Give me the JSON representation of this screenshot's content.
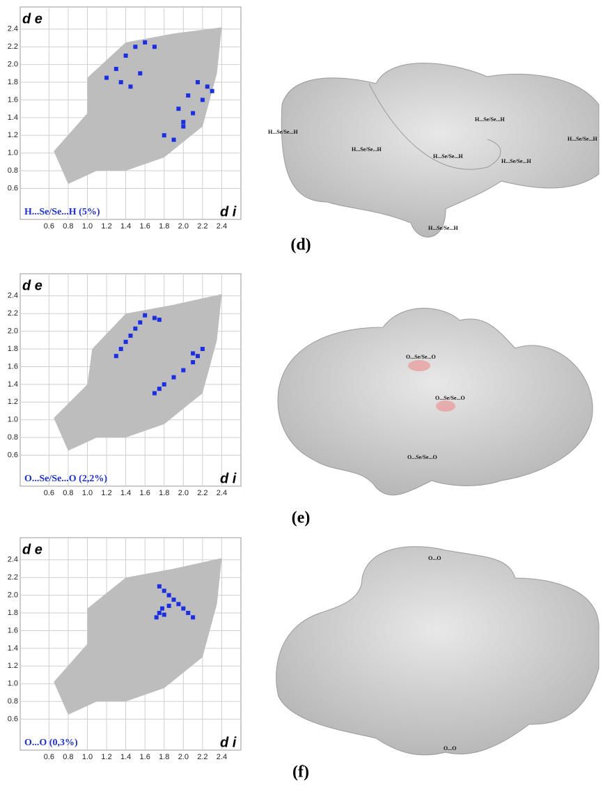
{
  "chart_data": [
    {
      "type": "scatter",
      "x_label": "d i",
      "y_label": "d e",
      "annotation": "H...Se/Se...H (5%)",
      "xlim": [
        0.3,
        2.6
      ],
      "ylim": [
        0.25,
        2.65
      ],
      "grid": true,
      "xticks": [
        0.6,
        0.8,
        {
          "value": 1,
          "label": "1.0"
        },
        1.2,
        1.4,
        1.6,
        1.8,
        {
          "value": 2,
          "label": "2.0"
        },
        2.2,
        2.4
      ],
      "yticks": [
        0.6,
        0.8,
        {
          "value": 1,
          "label": "1.0"
        },
        1.2,
        1.4,
        1.6,
        1.8,
        {
          "value": 2,
          "label": "2.0"
        },
        2.2,
        2.4
      ],
      "series": [
        {
          "style": "cloud",
          "color": "#bdbdbd",
          "x": [
            0.65,
            1.0,
            1.0,
            1.4,
            1.9,
            2.4,
            2.35,
            2.2,
            1.8,
            1.4,
            1.1,
            0.8
          ],
          "values": [
            1.02,
            1.45,
            1.85,
            2.25,
            2.35,
            2.42,
            1.9,
            1.3,
            0.95,
            0.8,
            0.8,
            0.65
          ]
        },
        {
          "style": "points",
          "color": "#1a2ee6",
          "x": [
            1.2,
            1.3,
            1.4,
            1.5,
            1.6,
            1.7,
            1.35,
            1.45,
            1.55,
            1.8,
            1.9,
            2.0,
            2.1,
            2.2,
            2.25,
            1.95,
            2.05,
            2.15,
            2.3,
            2.0
          ],
          "values": [
            1.85,
            1.95,
            2.1,
            2.2,
            2.25,
            2.2,
            1.8,
            1.75,
            1.9,
            1.2,
            1.15,
            1.3,
            1.45,
            1.6,
            1.75,
            1.5,
            1.65,
            1.8,
            1.7,
            1.35
          ]
        }
      ]
    },
    {
      "type": "scatter",
      "x_label": "d i",
      "y_label": "d e",
      "annotation": "O...Se/Se...O (2,2%)",
      "xlim": [
        0.3,
        2.6
      ],
      "ylim": [
        0.25,
        2.65
      ],
      "grid": true,
      "xticks": [
        0.6,
        0.8,
        {
          "value": 1,
          "label": "1.0"
        },
        1.2,
        1.4,
        1.6,
        1.8,
        {
          "value": 2,
          "label": "2.0"
        },
        2.2,
        2.4
      ],
      "yticks": [
        0.6,
        0.8,
        {
          "value": 1,
          "label": "1.0"
        },
        1.2,
        1.4,
        1.6,
        1.8,
        {
          "value": 2,
          "label": "2.0"
        },
        2.2,
        2.4
      ],
      "series": [
        {
          "style": "cloud",
          "color": "#bdbdbd",
          "x": [
            0.65,
            1.0,
            1.05,
            1.4,
            1.9,
            2.4,
            2.35,
            2.2,
            1.8,
            1.4,
            1.1,
            0.8
          ],
          "values": [
            1.02,
            1.4,
            1.8,
            2.2,
            2.3,
            2.42,
            1.9,
            1.3,
            0.95,
            0.8,
            0.8,
            0.65
          ]
        },
        {
          "style": "points",
          "color": "#1a2ee6",
          "x": [
            1.3,
            1.35,
            1.4,
            1.45,
            1.5,
            1.55,
            1.6,
            1.7,
            1.75,
            1.7,
            1.75,
            1.8,
            1.9,
            2.0,
            2.1,
            2.15,
            2.2,
            2.1
          ],
          "values": [
            1.72,
            1.8,
            1.88,
            1.95,
            2.03,
            2.1,
            2.18,
            2.15,
            2.13,
            1.3,
            1.35,
            1.4,
            1.48,
            1.56,
            1.65,
            1.72,
            1.8,
            1.75
          ]
        }
      ]
    },
    {
      "type": "scatter",
      "x_label": "d i",
      "y_label": "d e",
      "annotation": "O...O (0,3%)",
      "xlim": [
        0.3,
        2.6
      ],
      "ylim": [
        0.25,
        2.65
      ],
      "grid": true,
      "xticks": [
        0.6,
        0.8,
        {
          "value": 1,
          "label": "1.0"
        },
        1.2,
        1.4,
        1.6,
        1.8,
        {
          "value": 2,
          "label": "2.0"
        },
        2.2,
        2.4
      ],
      "yticks": [
        0.6,
        0.8,
        {
          "value": 1,
          "label": "1.0"
        },
        1.2,
        1.4,
        1.6,
        1.8,
        {
          "value": 2,
          "label": "2.0"
        },
        2.2,
        2.4
      ],
      "series": [
        {
          "style": "cloud",
          "color": "#bdbdbd",
          "x": [
            0.65,
            1.0,
            1.0,
            1.4,
            1.9,
            2.4,
            2.35,
            2.2,
            1.8,
            1.4,
            1.1,
            0.8
          ],
          "values": [
            1.02,
            1.45,
            1.85,
            2.2,
            2.3,
            2.42,
            1.9,
            1.3,
            0.95,
            0.8,
            0.8,
            0.65
          ]
        },
        {
          "style": "points",
          "color": "#1a2ee6",
          "x": [
            1.75,
            1.8,
            1.85,
            1.9,
            1.95,
            2.0,
            2.05,
            2.1,
            1.72,
            1.75,
            1.78,
            1.8,
            1.85
          ],
          "values": [
            2.1,
            2.05,
            2.0,
            1.95,
            1.9,
            1.85,
            1.8,
            1.75,
            1.75,
            1.8,
            1.85,
            1.78,
            1.88
          ]
        }
      ]
    }
  ],
  "panels": [
    {
      "caption": "(d)",
      "surface_labels": [
        "H...Se/Se...H",
        "H...Se/Se...H",
        "H...Se/Se...H",
        "H...Se/Se...H",
        "H...Se/Se...H",
        "H...Se/Se...H",
        "H...Se/Se...H"
      ]
    },
    {
      "caption": "(e)",
      "surface_labels": [
        "O...Se/Se...O",
        "O...Se/Se...O",
        "O...Se/Se...O"
      ]
    },
    {
      "caption": "(f)",
      "surface_labels": [
        "O...O",
        "O...O"
      ]
    }
  ]
}
